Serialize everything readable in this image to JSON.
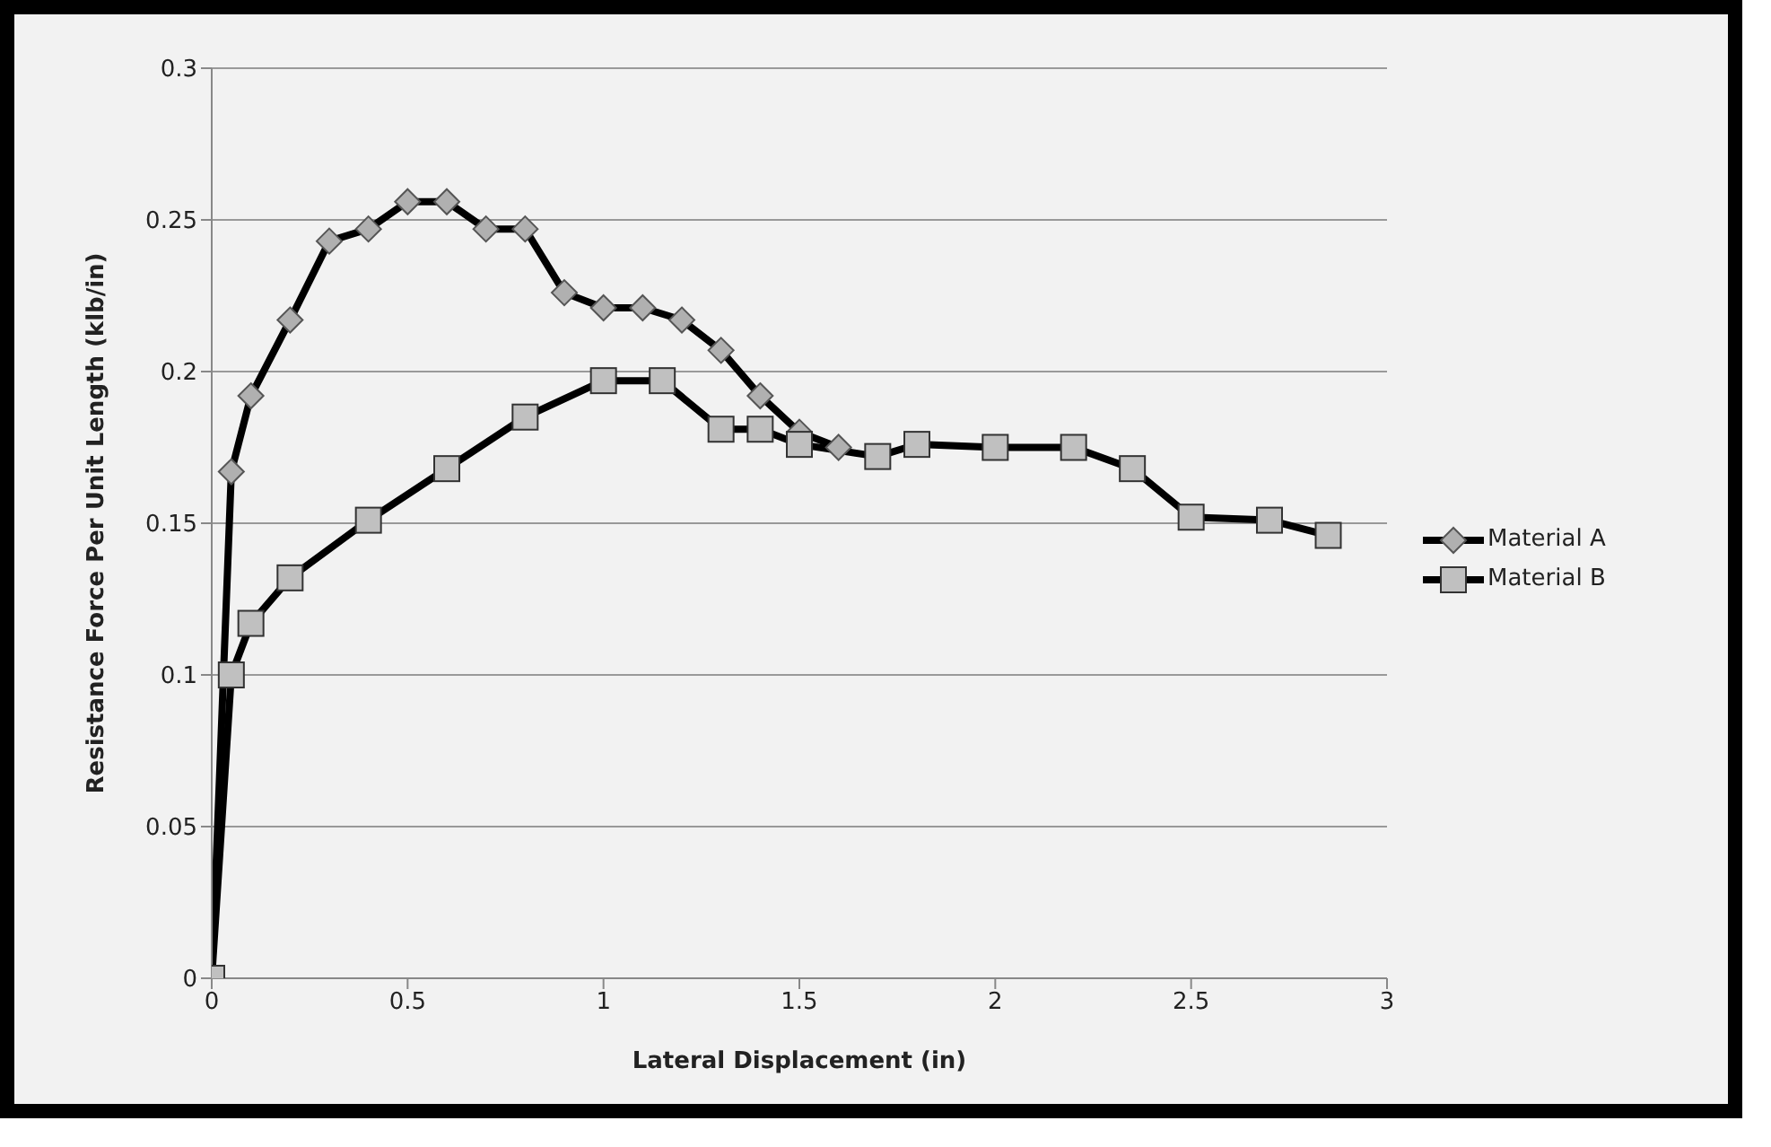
{
  "chart_data": {
    "type": "line",
    "xlabel": "Lateral Displacement  (in)",
    "ylabel": "Resistance  Force Per Unit Length  (klb/in)",
    "xlim": [
      0,
      3
    ],
    "xticks": [
      0,
      0.5,
      1,
      1.5,
      2,
      2.5,
      3
    ],
    "ylim": [
      0,
      0.3
    ],
    "yticks": [
      0,
      0.05,
      0.1,
      0.15,
      0.2,
      0.25,
      0.3
    ],
    "grid": "y",
    "legend": "right",
    "series": [
      {
        "name": "Material A",
        "color": "#b0b0b0",
        "marker": "diamond",
        "x": [
          0,
          0.05,
          0.1,
          0.2,
          0.3,
          0.4,
          0.5,
          0.6,
          0.7,
          0.8,
          0.9,
          1.0,
          1.1,
          1.2,
          1.3,
          1.4,
          1.5,
          1.6
        ],
        "values": [
          0,
          0.167,
          0.192,
          0.217,
          0.243,
          0.247,
          0.256,
          0.256,
          0.247,
          0.247,
          0.226,
          0.221,
          0.221,
          0.217,
          0.207,
          0.192,
          0.18,
          0.175
        ]
      },
      {
        "name": "Material B",
        "color": "#c0c0c0",
        "marker": "square",
        "x": [
          0,
          0.05,
          0.1,
          0.2,
          0.4,
          0.6,
          0.8,
          1.0,
          1.15,
          1.3,
          1.4,
          1.5,
          1.7,
          1.8,
          2.0,
          2.2,
          2.35,
          2.5,
          2.7,
          2.85
        ],
        "values": [
          0,
          0.1,
          0.117,
          0.132,
          0.151,
          0.168,
          0.185,
          0.197,
          0.197,
          0.181,
          0.181,
          0.176,
          0.172,
          0.176,
          0.175,
          0.175,
          0.168,
          0.152,
          0.151,
          0.146
        ]
      }
    ]
  }
}
